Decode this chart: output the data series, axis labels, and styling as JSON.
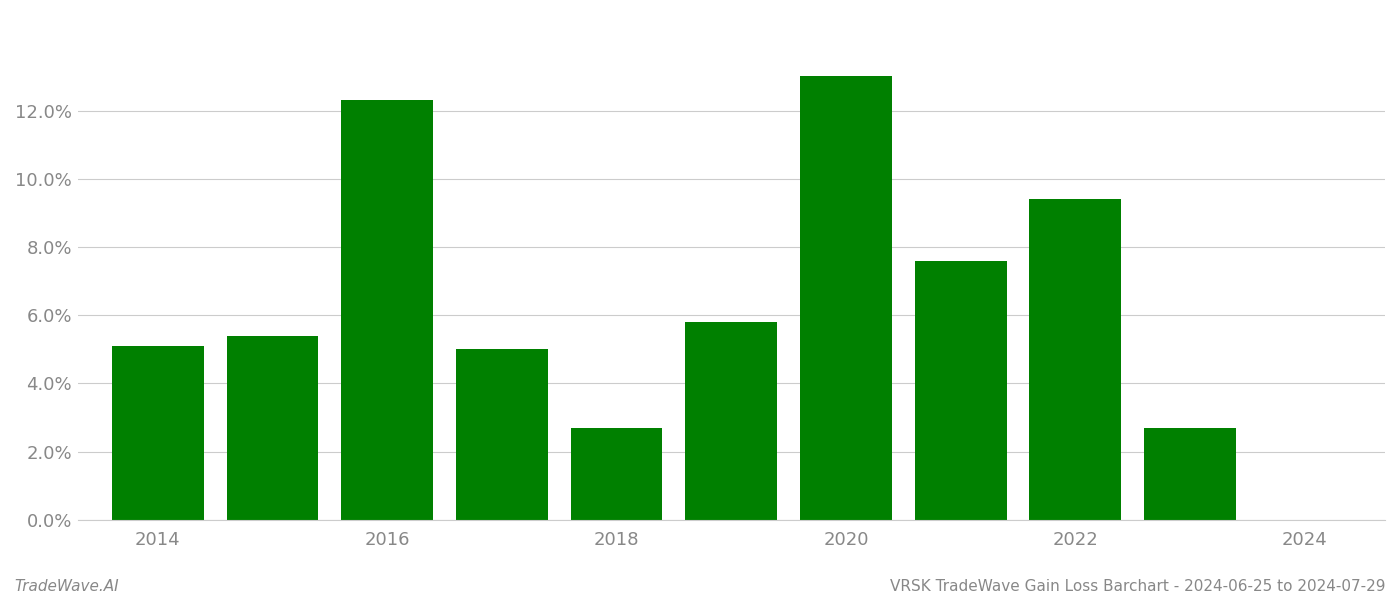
{
  "years": [
    2014,
    2015,
    2016,
    2017,
    2018,
    2019,
    2020,
    2021,
    2022,
    2023
  ],
  "values": [
    0.051,
    0.054,
    0.123,
    0.05,
    0.027,
    0.058,
    0.13,
    0.076,
    0.094,
    0.027
  ],
  "bar_color": "#008000",
  "background_color": "#ffffff",
  "grid_color": "#cccccc",
  "ylim": [
    0,
    0.148
  ],
  "yticks": [
    0.0,
    0.02,
    0.04,
    0.06,
    0.08,
    0.1,
    0.12
  ],
  "footer_left": "TradeWave.AI",
  "footer_right": "VRSK TradeWave Gain Loss Barchart - 2024-06-25 to 2024-07-29",
  "tick_label_color": "#888888",
  "footer_color": "#888888",
  "bar_width": 0.8,
  "x_tick_years": [
    2014,
    2016,
    2018,
    2020,
    2022,
    2024
  ],
  "figsize": [
    14.0,
    6.0
  ],
  "dpi": 100
}
